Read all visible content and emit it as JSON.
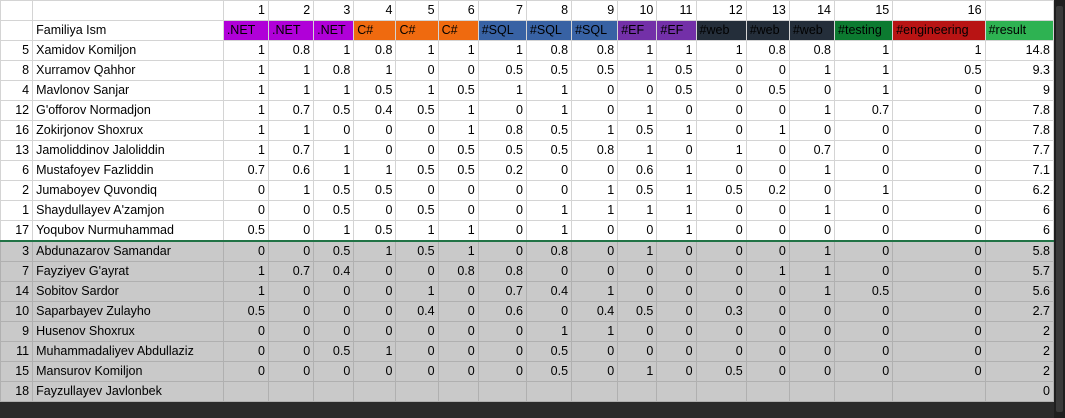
{
  "colors": {
    "net": "#b000d8",
    "csharp": "#ef6a0f",
    "sql": "#3862a4",
    "ef": "#7330a8",
    "web": "#242e3a",
    "testing": "#0c7a30",
    "engineering": "#b81414",
    "result": "#2eb252"
  },
  "column_numbers": [
    "1",
    "2",
    "3",
    "4",
    "5",
    "6",
    "7",
    "8",
    "9",
    "10",
    "11",
    "12",
    "13",
    "14",
    "15",
    "16"
  ],
  "header_label": "Familiya Ism",
  "tags": [
    ".NET",
    ".NET",
    ".NET",
    "C#",
    "C#",
    "C#",
    "#SQL",
    "#SQL",
    "#SQL",
    "#EF",
    "#EF",
    "#web",
    "#web",
    "#web",
    "#testing",
    "#engineering",
    "#result"
  ],
  "tag_colors": [
    "net",
    "net",
    "net",
    "csharp",
    "csharp",
    "csharp",
    "sql",
    "sql",
    "sql",
    "ef",
    "ef",
    "web",
    "web",
    "web",
    "testing",
    "engineering",
    "result"
  ],
  "rows": [
    {
      "id": "5",
      "name": "Xamidov Komiljon",
      "scores": [
        "1",
        "0.8",
        "1",
        "0.8",
        "1",
        "1",
        "1",
        "0.8",
        "0.8",
        "1",
        "1",
        "1",
        "0.8",
        "0.8",
        "1",
        "1",
        "14.8"
      ],
      "grey": false
    },
    {
      "id": "8",
      "name": "Xurramov Qahhor",
      "scores": [
        "1",
        "1",
        "0.8",
        "1",
        "0",
        "0",
        "0.5",
        "0.5",
        "0.5",
        "1",
        "0.5",
        "0",
        "0",
        "1",
        "1",
        "0.5",
        "9.3"
      ],
      "grey": false
    },
    {
      "id": "4",
      "name": "Mavlonov Sanjar",
      "scores": [
        "1",
        "1",
        "1",
        "0.5",
        "1",
        "0.5",
        "1",
        "1",
        "0",
        "0",
        "0.5",
        "0",
        "0.5",
        "0",
        "1",
        "0",
        "9"
      ],
      "grey": false
    },
    {
      "id": "12",
      "name": "G'offorov Normadjon",
      "scores": [
        "1",
        "0.7",
        "0.5",
        "0.4",
        "0.5",
        "1",
        "0",
        "1",
        "0",
        "1",
        "0",
        "0",
        "0",
        "1",
        "0.7",
        "0",
        "7.8"
      ],
      "grey": false
    },
    {
      "id": "16",
      "name": "Zokirjonov Shoxrux",
      "scores": [
        "1",
        "1",
        "0",
        "0",
        "0",
        "1",
        "0.8",
        "0.5",
        "1",
        "0.5",
        "1",
        "0",
        "1",
        "0",
        "0",
        "0",
        "7.8"
      ],
      "grey": false
    },
    {
      "id": "13",
      "name": "Jamoliddinov Jaloliddin",
      "scores": [
        "1",
        "0.7",
        "1",
        "0",
        "0",
        "0.5",
        "0.5",
        "0.5",
        "0.8",
        "1",
        "0",
        "1",
        "0",
        "0.7",
        "0",
        "0",
        "7.7"
      ],
      "grey": false
    },
    {
      "id": "6",
      "name": "Mustafoyev Fazliddin",
      "scores": [
        "0.7",
        "0.6",
        "1",
        "1",
        "0.5",
        "0.5",
        "0.2",
        "0",
        "0",
        "0.6",
        "1",
        "0",
        "0",
        "1",
        "0",
        "0",
        "7.1"
      ],
      "grey": false
    },
    {
      "id": "2",
      "name": "Jumaboyev Quvondiq",
      "scores": [
        "0",
        "1",
        "0.5",
        "0.5",
        "0",
        "0",
        "0",
        "0",
        "1",
        "0.5",
        "1",
        "0.5",
        "0.2",
        "0",
        "1",
        "0",
        "6.2"
      ],
      "grey": false
    },
    {
      "id": "1",
      "name": "Shaydullayev A'zamjon",
      "scores": [
        "0",
        "0",
        "0.5",
        "0",
        "0.5",
        "0",
        "0",
        "1",
        "1",
        "1",
        "1",
        "0",
        "0",
        "1",
        "0",
        "0",
        "6"
      ],
      "grey": false
    },
    {
      "id": "17",
      "name": "Yoqubov Nurmuhammad",
      "scores": [
        "0.5",
        "0",
        "1",
        "0.5",
        "1",
        "1",
        "0",
        "1",
        "0",
        "0",
        "1",
        "0",
        "0",
        "0",
        "0",
        "0",
        "6"
      ],
      "grey": false
    },
    {
      "id": "3",
      "name": "Abdunazarov Samandar",
      "scores": [
        "0",
        "0",
        "0.5",
        "1",
        "0.5",
        "1",
        "0",
        "0.8",
        "0",
        "1",
        "0",
        "0",
        "0",
        "1",
        "0",
        "0",
        "5.8"
      ],
      "grey": true
    },
    {
      "id": "7",
      "name": "Fayziyev G'ayrat",
      "scores": [
        "1",
        "0.7",
        "0.4",
        "0",
        "0",
        "0.8",
        "0.8",
        "0",
        "0",
        "0",
        "0",
        "0",
        "1",
        "1",
        "0",
        "0",
        "5.7"
      ],
      "grey": true
    },
    {
      "id": "14",
      "name": "Sobitov Sardor",
      "scores": [
        "1",
        "0",
        "0",
        "0",
        "1",
        "0",
        "0.7",
        "0.4",
        "1",
        "0",
        "0",
        "0",
        "0",
        "1",
        "0.5",
        "0",
        "5.6"
      ],
      "grey": true
    },
    {
      "id": "10",
      "name": "Saparbayev Zulayho",
      "scores": [
        "0.5",
        "0",
        "0",
        "0",
        "0.4",
        "0",
        "0.6",
        "0",
        "0.4",
        "0.5",
        "0",
        "0.3",
        "0",
        "0",
        "0",
        "0",
        "2.7"
      ],
      "grey": true
    },
    {
      "id": "9",
      "name": "Husenov Shoxrux",
      "scores": [
        "0",
        "0",
        "0",
        "0",
        "0",
        "0",
        "0",
        "1",
        "1",
        "0",
        "0",
        "0",
        "0",
        "0",
        "0",
        "0",
        "2"
      ],
      "grey": true
    },
    {
      "id": "11",
      "name": "Muhammadaliyev Abdullaziz",
      "scores": [
        "0",
        "0",
        "0.5",
        "1",
        "0",
        "0",
        "0",
        "0.5",
        "0",
        "0",
        "0",
        "0",
        "0",
        "0",
        "0",
        "0",
        "2"
      ],
      "grey": true
    },
    {
      "id": "15",
      "name": "Mansurov Komiljon",
      "scores": [
        "0",
        "0",
        "0",
        "0",
        "0",
        "0",
        "0",
        "0.5",
        "0",
        "1",
        "0",
        "0.5",
        "0",
        "0",
        "0",
        "0",
        "2"
      ],
      "grey": true
    },
    {
      "id": "18",
      "name": "Fayzullayev Javlonbek",
      "scores": [
        "",
        "",
        "",
        "",
        "",
        "",
        "",
        "",
        "",
        "",
        "",
        "",
        "",
        "",
        "",
        "",
        "0"
      ],
      "grey": true
    }
  ]
}
